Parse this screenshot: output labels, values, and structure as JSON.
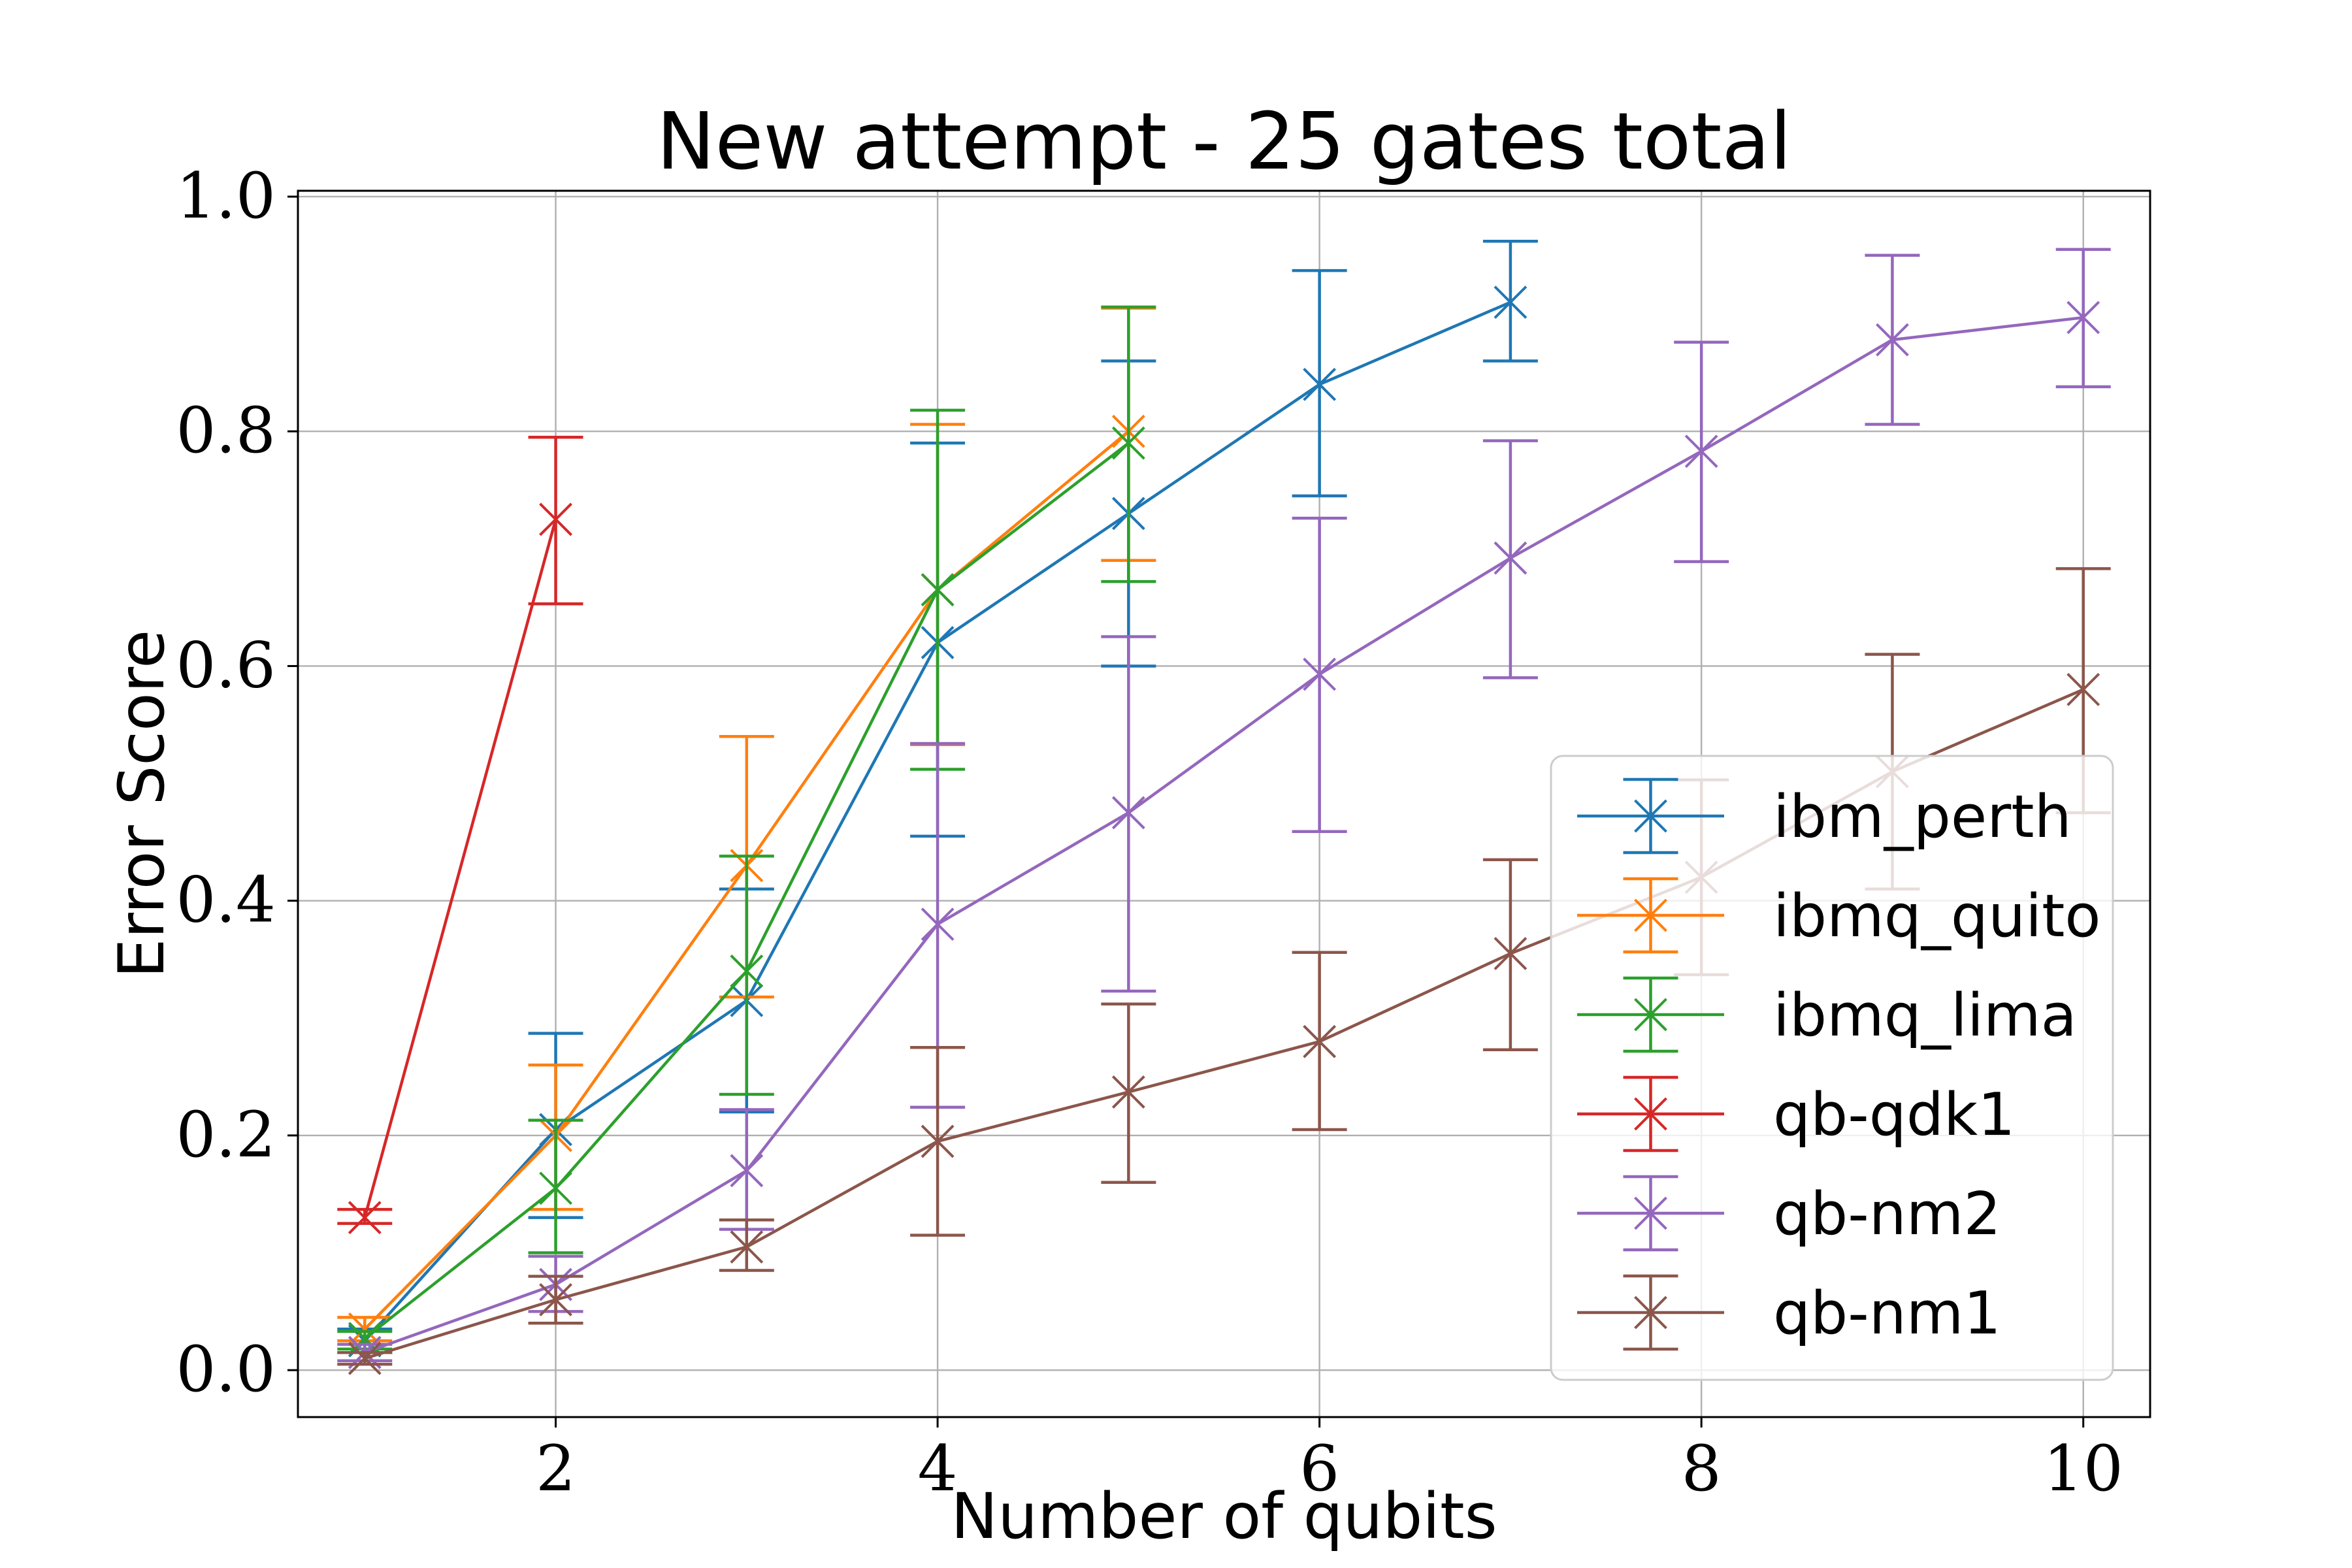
{
  "chart_data": {
    "type": "line",
    "title": "New attempt - 25 gates total",
    "xlabel": "Number of qubits",
    "ylabel": "Error Score",
    "xlim": [
      0.65,
      10.35
    ],
    "ylim": [
      -0.04,
      1.005
    ],
    "xticks": [
      2,
      4,
      6,
      8,
      10
    ],
    "xtick_labels": [
      "2",
      "4",
      "6",
      "8",
      "10"
    ],
    "yticks": [
      0.0,
      0.2,
      0.4,
      0.6,
      0.8,
      1.0
    ],
    "ytick_labels": [
      "0.0",
      "0.2",
      "0.4",
      "0.6",
      "0.8",
      "1.0"
    ],
    "grid": true,
    "legend_position": "lower-right",
    "series": [
      {
        "name": "ibm_perth",
        "color": "#1f77b4",
        "x": [
          1,
          2,
          3,
          4,
          5,
          6,
          7
        ],
        "y": [
          0.025,
          0.205,
          0.315,
          0.62,
          0.73,
          0.84,
          0.91
        ],
        "err_low": [
          0.015,
          0.13,
          0.22,
          0.455,
          0.6,
          0.745,
          0.86
        ],
        "err_high": [
          0.035,
          0.287,
          0.41,
          0.79,
          0.86,
          0.937,
          0.962
        ]
      },
      {
        "name": "ibmq_quito",
        "color": "#ff7f0e",
        "x": [
          1,
          2,
          3,
          4,
          5
        ],
        "y": [
          0.035,
          0.2,
          0.43,
          0.665,
          0.8
        ],
        "err_low": [
          0.025,
          0.137,
          0.318,
          0.533,
          0.69
        ],
        "err_high": [
          0.045,
          0.26,
          0.54,
          0.806,
          0.905
        ]
      },
      {
        "name": "ibmq_lima",
        "color": "#2ca02c",
        "x": [
          1,
          2,
          3,
          4,
          5
        ],
        "y": [
          0.027,
          0.155,
          0.34,
          0.665,
          0.79
        ],
        "err_low": [
          0.018,
          0.1,
          0.235,
          0.512,
          0.672
        ],
        "err_high": [
          0.033,
          0.213,
          0.438,
          0.818,
          0.906
        ]
      },
      {
        "name": "qb-qdk1",
        "color": "#d62728",
        "x": [
          1,
          2
        ],
        "y": [
          0.13,
          0.725
        ],
        "err_low": [
          0.125,
          0.653
        ],
        "err_high": [
          0.137,
          0.795
        ]
      },
      {
        "name": "qb-nm2",
        "color": "#9467bd",
        "x": [
          1,
          2,
          3,
          4,
          5,
          6,
          7,
          8,
          9,
          10
        ],
        "y": [
          0.015,
          0.073,
          0.17,
          0.38,
          0.475,
          0.593,
          0.692,
          0.783,
          0.878,
          0.897
        ],
        "err_low": [
          0.008,
          0.05,
          0.12,
          0.224,
          0.323,
          0.459,
          0.59,
          0.689,
          0.806,
          0.838
        ],
        "err_high": [
          0.022,
          0.097,
          0.222,
          0.534,
          0.625,
          0.726,
          0.792,
          0.876,
          0.95,
          0.955
        ]
      },
      {
        "name": "qb-nm1",
        "color": "#8c564b",
        "x": [
          1,
          2,
          3,
          4,
          5,
          6,
          7,
          8,
          9,
          10
        ],
        "y": [
          0.01,
          0.06,
          0.105,
          0.195,
          0.237,
          0.28,
          0.355,
          0.42,
          0.51,
          0.58
        ],
        "err_low": [
          0.005,
          0.04,
          0.085,
          0.115,
          0.16,
          0.205,
          0.273,
          0.337,
          0.41,
          0.475
        ],
        "err_high": [
          0.015,
          0.08,
          0.128,
          0.275,
          0.312,
          0.356,
          0.435,
          0.503,
          0.61,
          0.683
        ]
      }
    ]
  }
}
